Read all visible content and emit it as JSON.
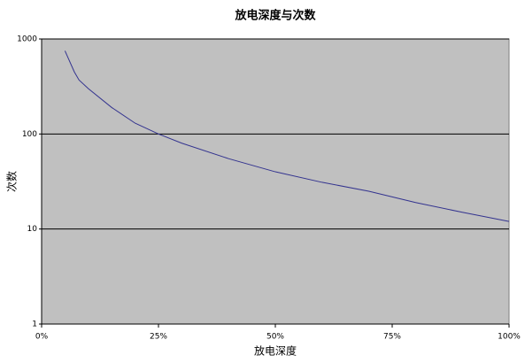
{
  "chart_data": {
    "type": "line",
    "title": "放电深度与次数",
    "x_label": "放电深度",
    "y_label": "次数",
    "x": [
      5,
      7,
      8,
      10,
      15,
      20,
      25,
      30,
      40,
      50,
      60,
      70,
      80,
      90,
      100
    ],
    "values": [
      750,
      450,
      370,
      300,
      190,
      130,
      100,
      80,
      55,
      40,
      31,
      25,
      19,
      15,
      12
    ],
    "color": "#33338f",
    "xlim": [
      0,
      100
    ],
    "xticks": [
      {
        "value": 0,
        "label": "0%"
      },
      {
        "value": 25,
        "label": "25%"
      },
      {
        "value": 50,
        "label": "50%"
      },
      {
        "value": 75,
        "label": "75%"
      },
      {
        "value": 100,
        "label": "100%"
      }
    ],
    "ylim": [
      1,
      1000
    ],
    "yticks": [
      1,
      10,
      100,
      1000
    ],
    "log_y": true,
    "grid": true
  }
}
